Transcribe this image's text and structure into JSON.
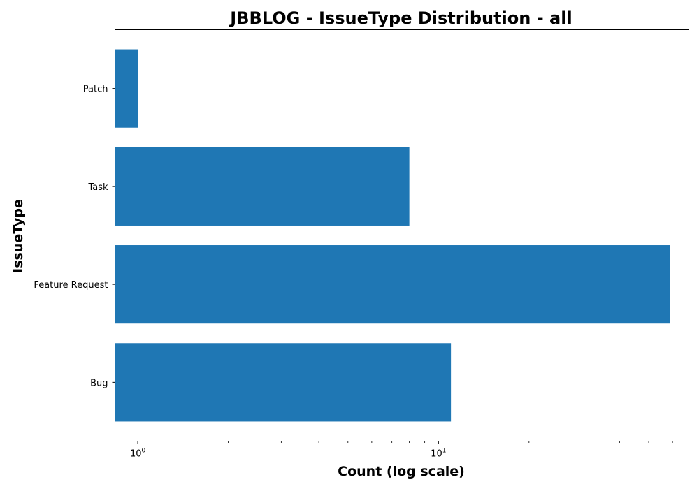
{
  "chart_data": {
    "type": "bar",
    "orientation": "horizontal",
    "title": "JBBLOG - IssueType Distribution - all",
    "xlabel": "Count (log scale)",
    "ylabel": "IssueType",
    "x_scale": "log",
    "xlim": [
      0.84,
      68
    ],
    "categories": [
      "Bug",
      "Feature Request",
      "Task",
      "Patch"
    ],
    "values": [
      11,
      59,
      8,
      1
    ],
    "x_ticks": [
      {
        "value": 1,
        "base": "10",
        "exp": "0"
      },
      {
        "value": 10,
        "base": "10",
        "exp": "1"
      }
    ],
    "bar_color": "#1f77b4",
    "grid": false,
    "legend": "none"
  }
}
